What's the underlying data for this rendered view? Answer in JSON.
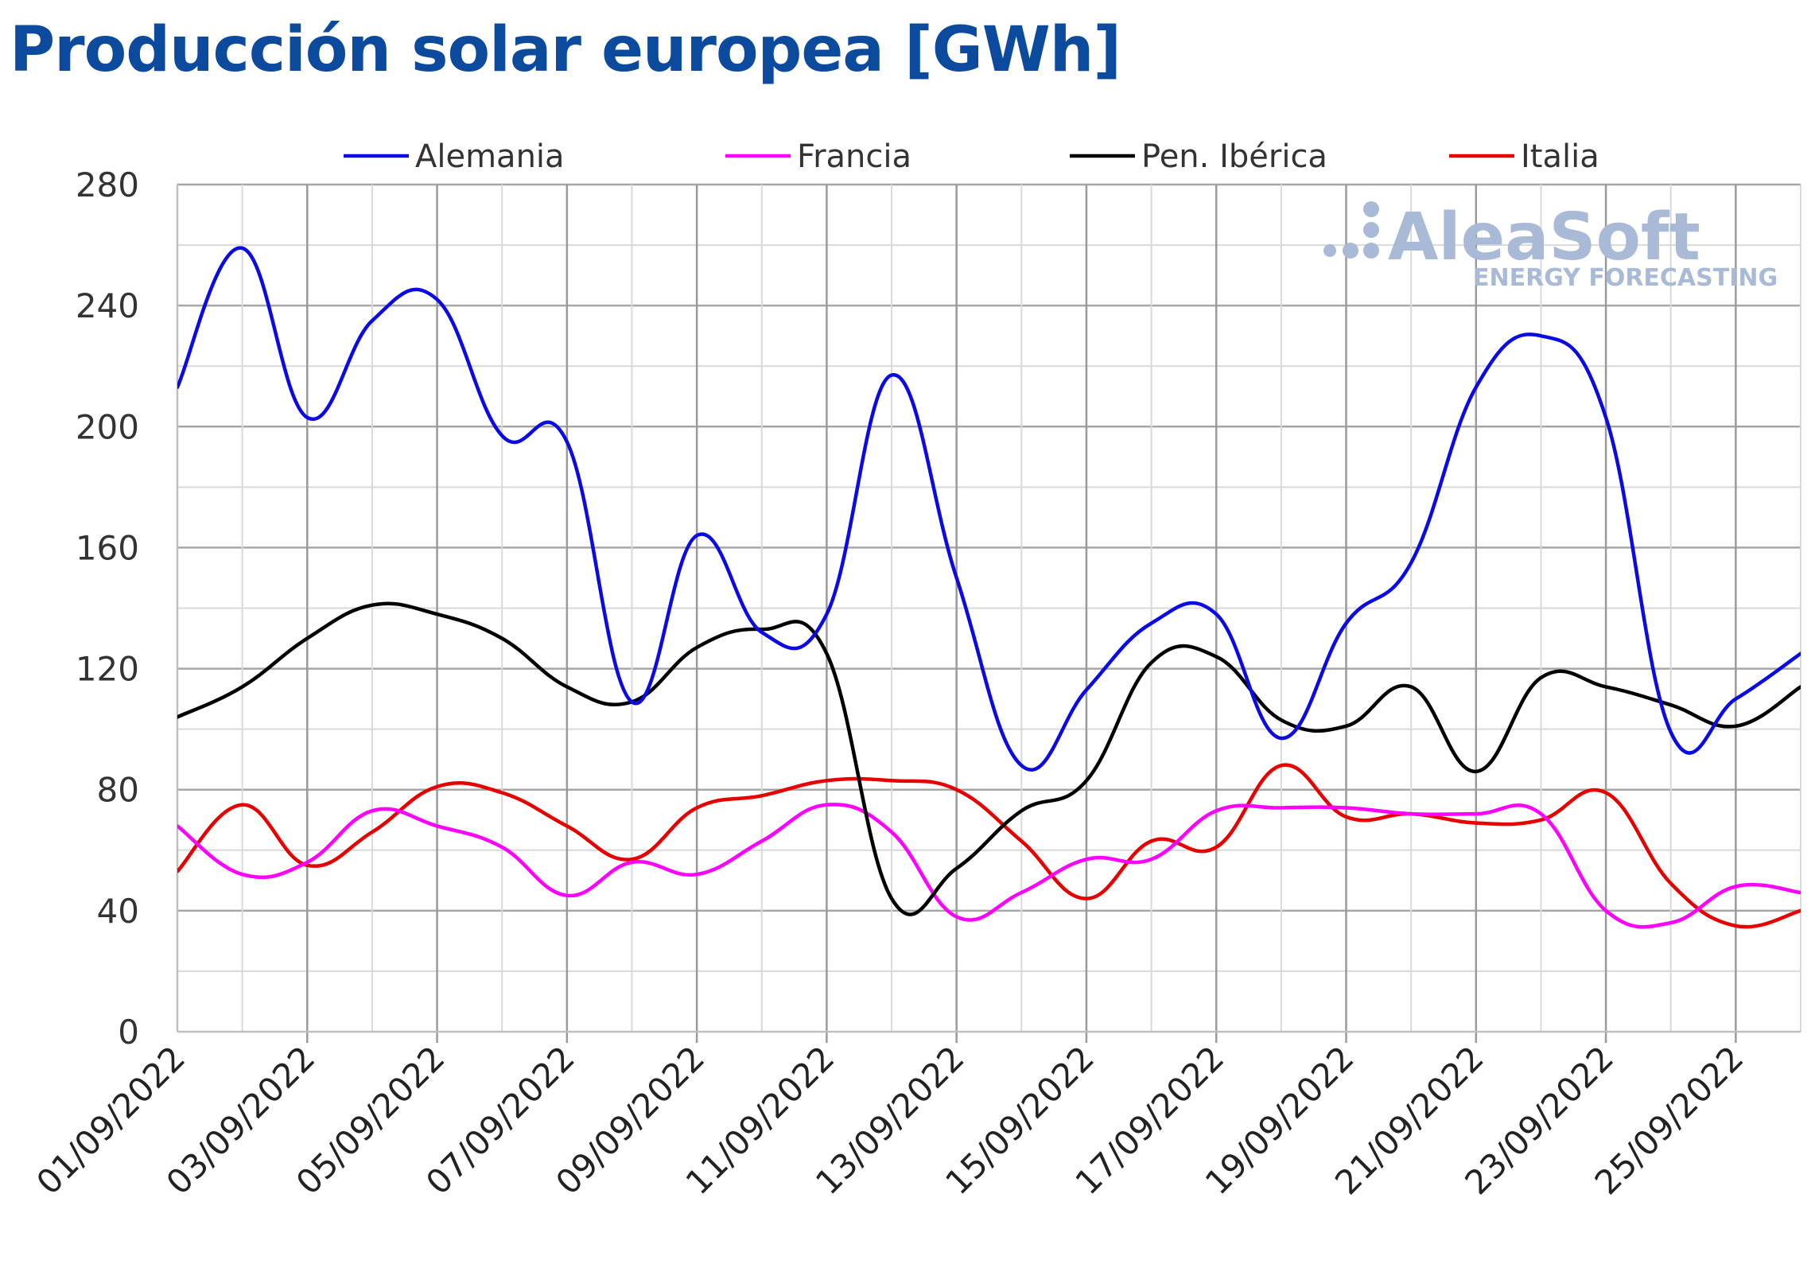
{
  "title": "Producción solar europea [GWh]",
  "watermark": {
    "brand": "AleaSoft",
    "tagline": "ENERGY FORECASTING",
    "color": "#a9bad6"
  },
  "chart_data": {
    "type": "line",
    "title": "Producción solar europea [GWh]",
    "xlabel": "",
    "ylabel": "",
    "ylim": [
      0,
      280
    ],
    "y_ticks": [
      "0",
      "40",
      "80",
      "120",
      "160",
      "200",
      "240",
      "280"
    ],
    "x_tick_labels": [
      "01/09/2022",
      "03/09/2022",
      "05/09/2022",
      "07/09/2022",
      "09/09/2022",
      "11/09/2022",
      "13/09/2022",
      "15/09/2022",
      "17/09/2022",
      "19/09/2022",
      "21/09/2022",
      "23/09/2022",
      "25/09/2022"
    ],
    "x": [
      "01/09/2022",
      "02/09/2022",
      "03/09/2022",
      "04/09/2022",
      "05/09/2022",
      "06/09/2022",
      "07/09/2022",
      "08/09/2022",
      "09/09/2022",
      "10/09/2022",
      "11/09/2022",
      "12/09/2022",
      "13/09/2022",
      "14/09/2022",
      "15/09/2022",
      "16/09/2022",
      "17/09/2022",
      "18/09/2022",
      "19/09/2022",
      "20/09/2022",
      "21/09/2022",
      "22/09/2022",
      "23/09/2022",
      "24/09/2022",
      "25/09/2022",
      "26/09/2022"
    ],
    "grid": true,
    "legend_position": "top",
    "series": [
      {
        "name": "Alemania",
        "color": "#0a0ae6",
        "values": [
          213,
          259,
          203,
          235,
          242,
          197,
          195,
          109,
          164,
          132,
          138,
          217,
          150,
          88,
          113,
          135,
          138,
          97,
          135,
          155,
          213,
          230,
          203,
          99,
          110,
          125
        ]
      },
      {
        "name": "Francia",
        "color": "#ff00ff",
        "values": [
          68,
          52,
          56,
          73,
          68,
          61,
          45,
          56,
          52,
          63,
          75,
          66,
          38,
          46,
          57,
          57,
          73,
          74,
          74,
          72,
          72,
          72,
          40,
          36,
          48,
          46
        ]
      },
      {
        "name": "Pen. Ibérica",
        "color": "#000000",
        "values": [
          104,
          114,
          130,
          141,
          138,
          130,
          114,
          109,
          127,
          133,
          125,
          44,
          54,
          73,
          83,
          122,
          124,
          103,
          101,
          114,
          86,
          117,
          114,
          108,
          101,
          114
        ]
      },
      {
        "name": "Italia",
        "color": "#e60000",
        "values": [
          53,
          75,
          55,
          66,
          81,
          79,
          68,
          57,
          74,
          78,
          83,
          83,
          80,
          63,
          44,
          63,
          61,
          88,
          71,
          72,
          69,
          70,
          79,
          49,
          35,
          40
        ]
      }
    ]
  }
}
